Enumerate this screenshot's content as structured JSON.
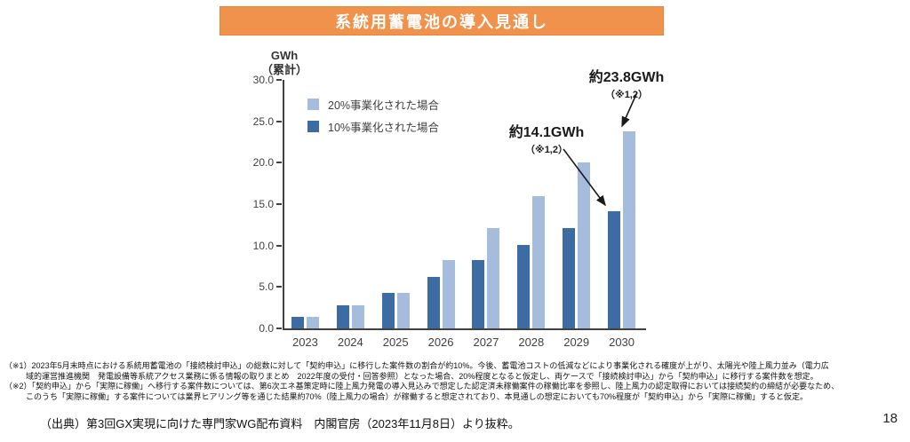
{
  "title": "系統用蓄電池の導入見通し",
  "colors": {
    "banner_orange": "#F0924C",
    "light_blue": "#A6BCDC",
    "dark_blue": "#3D6CA5"
  },
  "chart_data": {
    "type": "bar",
    "title": "系統用蓄電池の導入見通し",
    "unit": "GWh",
    "unit_note": "（累計）",
    "categories": [
      "2023",
      "2024",
      "2025",
      "2026",
      "2027",
      "2028",
      "2029",
      "2030"
    ],
    "series": [
      {
        "name": "20%事業化された場合",
        "color": "#A6BCDC",
        "values": [
          1.4,
          2.8,
          4.3,
          8.3,
          12.1,
          16.0,
          20.0,
          23.8
        ]
      },
      {
        "name": "10%事業化された場合",
        "color": "#3D6CA5",
        "values": [
          1.4,
          2.8,
          4.3,
          6.2,
          8.2,
          10.1,
          12.1,
          14.1
        ]
      }
    ],
    "ylim": [
      0,
      30
    ],
    "y_tick_step": 5,
    "y_ticks": [
      "30.0",
      "25.0",
      "20.0",
      "15.0",
      "10.0",
      "5.0",
      "0.0"
    ],
    "grid": false,
    "legend_position": "inside-top-left",
    "bar_pair_order": "10% (dark) bar on left, 20% (light) bar on right of each year pair"
  },
  "annotations": [
    {
      "label": "約14.1GWh",
      "note": "（※1,2）",
      "target": "2030-10pct-bar"
    },
    {
      "label": "約23.8GWh",
      "note": "（※1,2）",
      "target": "2030-20pct-bar"
    }
  ],
  "footnotes": {
    "note1_line1": "（※1）2023年5月末時点における系統用蓄電池の「接続検討申込」の総数に対して「契約申込」に移行した案件数の割合が約10%。今後、蓄電池コストの低減などにより事業化される確度が上がり、太陽光や陸上風力並み（電力広",
    "note1_line2": "域的運営推進機関　発電設備等系統アクセス業務に係る情報の取りまとめ　2022年度の受付・回答参照）となった場合、20%程度となると仮定し、両ケースで「接続検討申込」から「契約申込」に移行する案件数を想定。",
    "note2_line1": "（※2）「契約申込」から「実際に稼働」へ移行する案件数については、第6次エネ基策定時に陸上風力発電の導入見込みで想定した認定済未稼働案件の稼働比率を参照し、陸上風力の認定取得においては接続契約の締結が必要なため、",
    "note2_line2": "このうち「実際に稼働」する案件については業界ヒアリング等を通じた結果約70%（陸上風力の場合）が稼働すると想定されており、本見通しの想定においても70%程度が「契約申込」から「実際に稼働」すると仮定。"
  },
  "source": "（出典）第3回GX実現に向けた専門家WG配布資料　内閣官房（2023年11月8日）より抜粋。",
  "page_number": "18"
}
